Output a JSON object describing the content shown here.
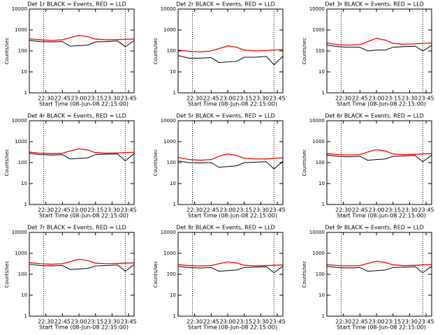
{
  "chart_data": [
    {
      "type": "line",
      "title": "Det 1r BLACK = Events, RED = LLD",
      "xlabel": "Start Time (08-Jun-08 22:15:00)",
      "ylabel": "Counts/sec",
      "x": [
        "22:15",
        "22:25",
        "22:35",
        "22:45",
        "22:52",
        "23:00",
        "23:08",
        "23:15",
        "23:25",
        "23:35",
        "23:42",
        "23:50"
      ],
      "series": [
        {
          "color": "#ff0000",
          "values": [
            380,
            340,
            320,
            340,
            430,
            550,
            480,
            370,
            340,
            350,
            360,
            370
          ]
        },
        {
          "color": "#000000",
          "values": [
            320,
            280,
            270,
            280,
            170,
            180,
            190,
            270,
            280,
            300,
            160,
            310
          ]
        }
      ],
      "xlim": [
        "22:15",
        "23:50"
      ],
      "xticks": [
        "22:30",
        "22:45",
        "23:00",
        "23:15",
        "23:30",
        "23:45"
      ],
      "ylim": [
        1,
        10000
      ],
      "yticks": [
        1,
        10,
        100,
        1000,
        10000
      ],
      "log_scale": "y",
      "vlines": [
        "22:28",
        "23:42"
      ]
    },
    {
      "type": "line",
      "title": "Det 2r BLACK = Events, RED = LLD",
      "xlabel": "Start Time (08-Jun-08 22:15:00)",
      "ylabel": "Counts/sec",
      "x": [
        "22:15",
        "22:25",
        "22:35",
        "22:45",
        "22:52",
        "23:00",
        "23:08",
        "23:15",
        "23:25",
        "23:35",
        "23:42",
        "23:50"
      ],
      "series": [
        {
          "color": "#ff0000",
          "values": [
            110,
            95,
            90,
            100,
            130,
            175,
            150,
            110,
            100,
            105,
            110,
            115
          ]
        },
        {
          "color": "#000000",
          "values": [
            60,
            45,
            45,
            48,
            28,
            30,
            32,
            50,
            50,
            55,
            22,
            55
          ]
        }
      ],
      "xlim": [
        "22:15",
        "23:50"
      ],
      "xticks": [
        "22:30",
        "22:45",
        "23:00",
        "23:15",
        "23:30",
        "23:45"
      ],
      "ylim": [
        1,
        10000
      ],
      "yticks": [
        1,
        10,
        100,
        1000,
        10000
      ],
      "log_scale": "y",
      "vlines": [
        "22:28",
        "23:42"
      ]
    },
    {
      "type": "line",
      "title": "Det 3r BLACK = Events, RED = LLD",
      "xlabel": "Start Time (08-Jun-08 22:15:00)",
      "ylabel": "Counts/sec",
      "x": [
        "22:15",
        "22:25",
        "22:35",
        "22:45",
        "22:52",
        "23:00",
        "23:08",
        "23:15",
        "23:25",
        "23:35",
        "23:42",
        "23:50"
      ],
      "series": [
        {
          "color": "#ff0000",
          "values": [
            240,
            200,
            190,
            200,
            280,
            400,
            330,
            230,
            210,
            220,
            230,
            240
          ]
        },
        {
          "color": "#000000",
          "values": [
            190,
            160,
            150,
            150,
            100,
            110,
            110,
            150,
            160,
            170,
            100,
            180
          ]
        }
      ],
      "xlim": [
        "22:15",
        "23:50"
      ],
      "xticks": [
        "22:30",
        "22:45",
        "23:00",
        "23:15",
        "23:30",
        "23:45"
      ],
      "ylim": [
        1,
        10000
      ],
      "yticks": [
        1,
        10,
        100,
        1000,
        10000
      ],
      "log_scale": "y",
      "vlines": [
        "22:28",
        "23:42"
      ]
    },
    {
      "type": "line",
      "title": "Det 4r BLACK = Events, RED = LLD",
      "xlabel": "Start Time (08-Jun-08 22:15:00)",
      "ylabel": "Counts/sec",
      "x": [
        "22:15",
        "22:25",
        "22:35",
        "22:45",
        "22:52",
        "23:00",
        "23:08",
        "23:15",
        "23:25",
        "23:35",
        "23:42",
        "23:50"
      ],
      "series": [
        {
          "color": "#ff0000",
          "values": [
            320,
            280,
            270,
            280,
            360,
            460,
            400,
            300,
            280,
            290,
            300,
            310
          ]
        },
        {
          "color": "#000000",
          "values": [
            280,
            240,
            230,
            240,
            150,
            160,
            170,
            240,
            250,
            260,
            120,
            270
          ]
        }
      ],
      "xlim": [
        "22:15",
        "23:50"
      ],
      "xticks": [
        "22:30",
        "22:45",
        "23:00",
        "23:15",
        "23:30",
        "23:45"
      ],
      "ylim": [
        1,
        10000
      ],
      "yticks": [
        1,
        10,
        100,
        1000,
        10000
      ],
      "log_scale": "y",
      "vlines": [
        "22:28",
        "23:42"
      ]
    },
    {
      "type": "line",
      "title": "Det 5r BLACK = Events, RED = LLD",
      "xlabel": "Start Time (08-Jun-08 22:15:00)",
      "ylabel": "Counts/sec",
      "x": [
        "22:15",
        "22:25",
        "22:35",
        "22:45",
        "22:52",
        "23:00",
        "23:08",
        "23:15",
        "23:25",
        "23:35",
        "23:42",
        "23:50"
      ],
      "series": [
        {
          "color": "#ff0000",
          "values": [
            180,
            140,
            130,
            140,
            200,
            260,
            220,
            160,
            150,
            150,
            160,
            170
          ]
        },
        {
          "color": "#000000",
          "values": [
            120,
            100,
            95,
            100,
            60,
            65,
            70,
            100,
            105,
            110,
            50,
            115
          ]
        }
      ],
      "xlim": [
        "22:15",
        "23:50"
      ],
      "xticks": [
        "22:30",
        "22:45",
        "23:00",
        "23:15",
        "23:30",
        "23:45"
      ],
      "ylim": [
        1,
        10000
      ],
      "yticks": [
        1,
        10,
        100,
        1000,
        10000
      ],
      "log_scale": "y",
      "vlines": [
        "22:28",
        "23:42"
      ]
    },
    {
      "type": "line",
      "title": "Det 6r BLACK = Events, RED = LLD",
      "xlabel": "Start Time (08-Jun-08 22:15:00)",
      "ylabel": "Counts/sec",
      "x": [
        "22:15",
        "22:25",
        "22:35",
        "22:45",
        "22:52",
        "23:00",
        "23:08",
        "23:15",
        "23:25",
        "23:35",
        "23:42",
        "23:50"
      ],
      "series": [
        {
          "color": "#ff0000",
          "values": [
            270,
            240,
            230,
            240,
            320,
            420,
            360,
            260,
            240,
            250,
            260,
            270
          ]
        },
        {
          "color": "#000000",
          "values": [
            230,
            200,
            190,
            200,
            130,
            140,
            150,
            200,
            210,
            220,
            110,
            230
          ]
        }
      ],
      "xlim": [
        "22:15",
        "23:50"
      ],
      "xticks": [
        "22:30",
        "22:45",
        "23:00",
        "23:15",
        "23:30",
        "23:45"
      ],
      "ylim": [
        1,
        10000
      ],
      "yticks": [
        1,
        10,
        100,
        1000,
        10000
      ],
      "log_scale": "y",
      "vlines": [
        "22:28",
        "23:42"
      ]
    },
    {
      "type": "line",
      "title": "Det 7r BLACK = Events, RED = LLD",
      "xlabel": "Start Time (08-Jun-08 22:15:00)",
      "ylabel": "Counts/sec",
      "x": [
        "22:15",
        "22:25",
        "22:35",
        "22:45",
        "22:52",
        "23:00",
        "23:08",
        "23:15",
        "23:25",
        "23:35",
        "23:42",
        "23:50"
      ],
      "series": [
        {
          "color": "#ff0000",
          "values": [
            360,
            320,
            300,
            320,
            400,
            520,
            450,
            340,
            320,
            330,
            340,
            350
          ]
        },
        {
          "color": "#000000",
          "values": [
            300,
            260,
            250,
            260,
            170,
            180,
            190,
            250,
            260,
            280,
            140,
            290
          ]
        }
      ],
      "xlim": [
        "22:15",
        "23:50"
      ],
      "xticks": [
        "22:30",
        "22:45",
        "23:00",
        "23:15",
        "23:30",
        "23:45"
      ],
      "ylim": [
        1,
        10000
      ],
      "yticks": [
        1,
        10,
        100,
        1000,
        10000
      ],
      "log_scale": "y",
      "vlines": [
        "22:28",
        "23:42"
      ]
    },
    {
      "type": "line",
      "title": "Det 8r BLACK = Events, RED = LLD",
      "xlabel": "Start Time (08-Jun-08 22:15:00)",
      "ylabel": "Counts/sec",
      "x": [
        "22:15",
        "22:25",
        "22:35",
        "22:45",
        "22:52",
        "23:00",
        "23:08",
        "23:15",
        "23:25",
        "23:35",
        "23:42",
        "23:50"
      ],
      "series": [
        {
          "color": "#ff0000",
          "values": [
            290,
            260,
            250,
            260,
            320,
            390,
            350,
            270,
            250,
            260,
            270,
            280
          ]
        },
        {
          "color": "#000000",
          "values": [
            240,
            210,
            200,
            210,
            140,
            150,
            160,
            210,
            220,
            230,
            120,
            240
          ]
        }
      ],
      "xlim": [
        "22:15",
        "23:50"
      ],
      "xticks": [
        "22:30",
        "22:45",
        "23:00",
        "23:15",
        "23:30",
        "23:45"
      ],
      "ylim": [
        1,
        10000
      ],
      "yticks": [
        1,
        10,
        100,
        1000,
        10000
      ],
      "log_scale": "y",
      "vlines": [
        "22:28",
        "23:42"
      ]
    },
    {
      "type": "line",
      "title": "Det 9r BLACK = Events, RED = LLD",
      "xlabel": "Start Time (08-Jun-08 22:15:00)",
      "ylabel": "Counts/sec",
      "x": [
        "22:15",
        "22:25",
        "22:35",
        "22:45",
        "22:52",
        "23:00",
        "23:08",
        "23:15",
        "23:25",
        "23:35",
        "23:42",
        "23:50"
      ],
      "series": [
        {
          "color": "#ff0000",
          "values": [
            290,
            260,
            250,
            260,
            330,
            420,
            370,
            280,
            260,
            270,
            280,
            290
          ]
        },
        {
          "color": "#000000",
          "values": [
            240,
            210,
            200,
            210,
            140,
            150,
            160,
            210,
            220,
            230,
            120,
            240
          ]
        }
      ],
      "xlim": [
        "22:15",
        "23:50"
      ],
      "xticks": [
        "22:30",
        "22:45",
        "23:00",
        "23:15",
        "23:30",
        "23:45"
      ],
      "ylim": [
        1,
        10000
      ],
      "yticks": [
        1,
        10,
        100,
        1000,
        10000
      ],
      "log_scale": "y",
      "vlines": [
        "22:28",
        "23:42"
      ]
    }
  ]
}
